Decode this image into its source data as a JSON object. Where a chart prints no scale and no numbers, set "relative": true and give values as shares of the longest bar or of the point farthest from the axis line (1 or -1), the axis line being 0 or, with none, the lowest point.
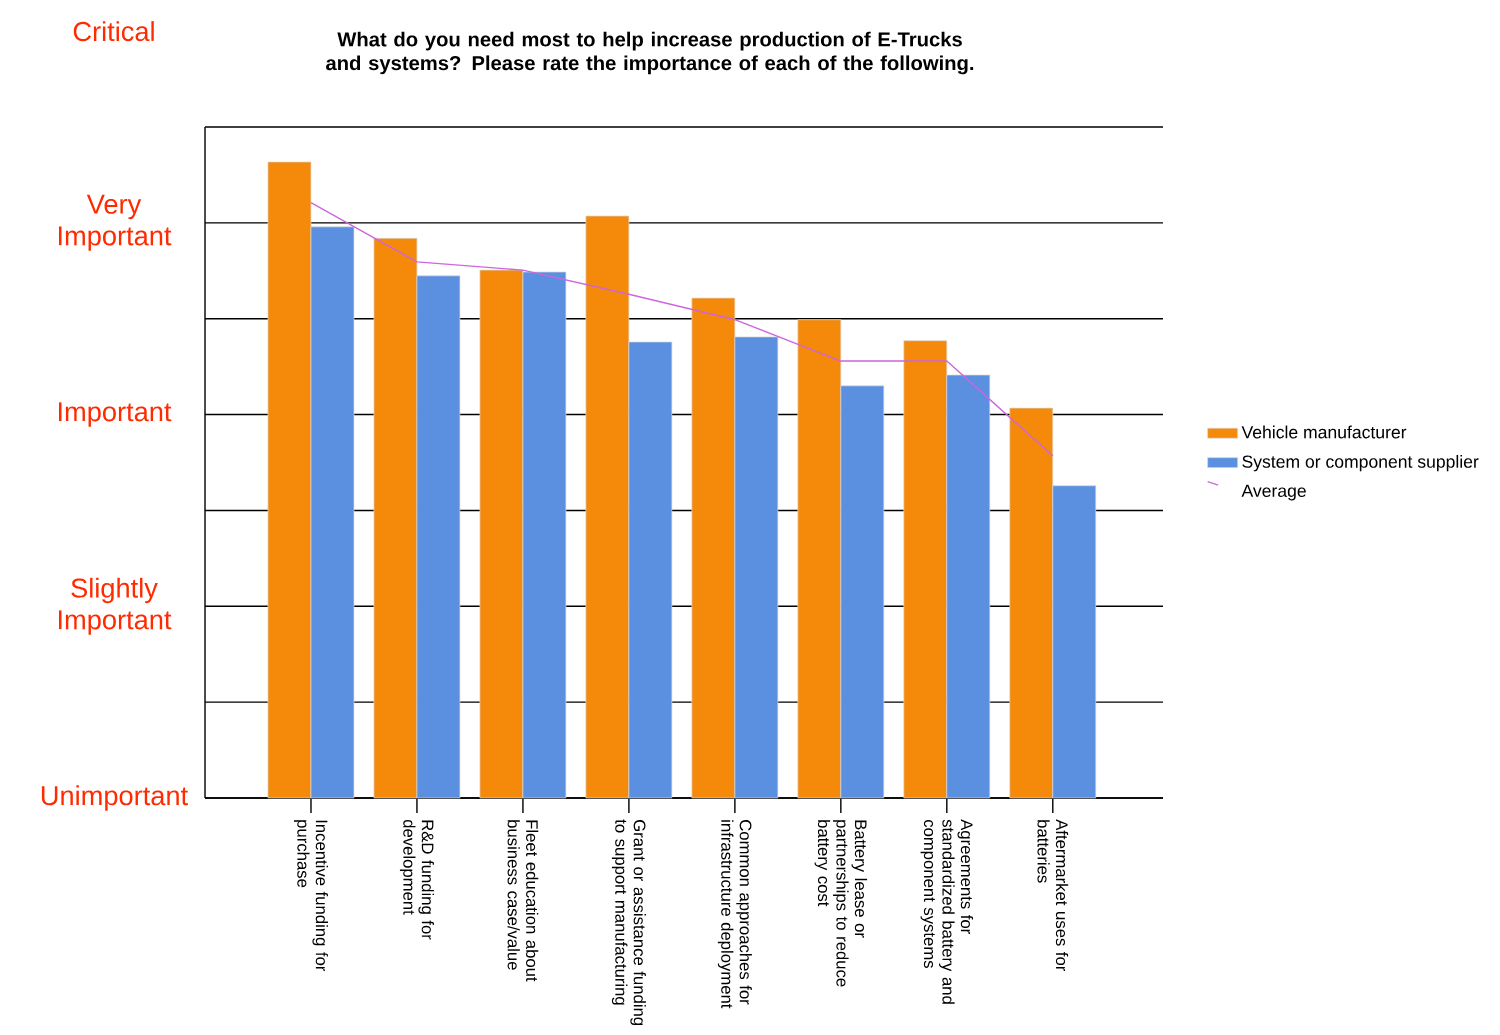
{
  "chart_data": {
    "type": "bar",
    "title": "What do you need most to help increase production of E-Trucks and systems?  Please rate the importance of each of the following.",
    "categories": [
      "Incentive funding for purchase",
      "R&D funding for development",
      "Fleet education about business case/value",
      "Grant or assistance funding to support manufacturing",
      "Common approaches for infrastructure deployment",
      "Battery lease or partnerships to reduce battery cost",
      "Agreements for standardized battery and component systems",
      "Aftermarket uses for batteries"
    ],
    "relative": true,
    "series": [
      {
        "name": "Vehicle manufacturer",
        "color": "#f5890a",
        "values": [
          1,
          0.88,
          0.83,
          0.915,
          0.786,
          0.752,
          0.719,
          0.613
        ]
      },
      {
        "name": "System or component supplier",
        "color": "#5b8fe0",
        "values": [
          0.898,
          0.821,
          0.827,
          0.717,
          0.725,
          0.648,
          0.665,
          0.491
        ]
      },
      {
        "name": "Average",
        "type": "line",
        "color": "#cc66dd",
        "values": [
          0.936,
          0.843,
          0.83,
          0.792,
          0.752,
          0.687,
          0.687,
          0.538
        ]
      }
    ],
    "grid": "y",
    "legend": "right",
    "annotations": [
      "Critical",
      "Very Important",
      "Important",
      "Slightly Important",
      "Unimportant"
    ]
  }
}
